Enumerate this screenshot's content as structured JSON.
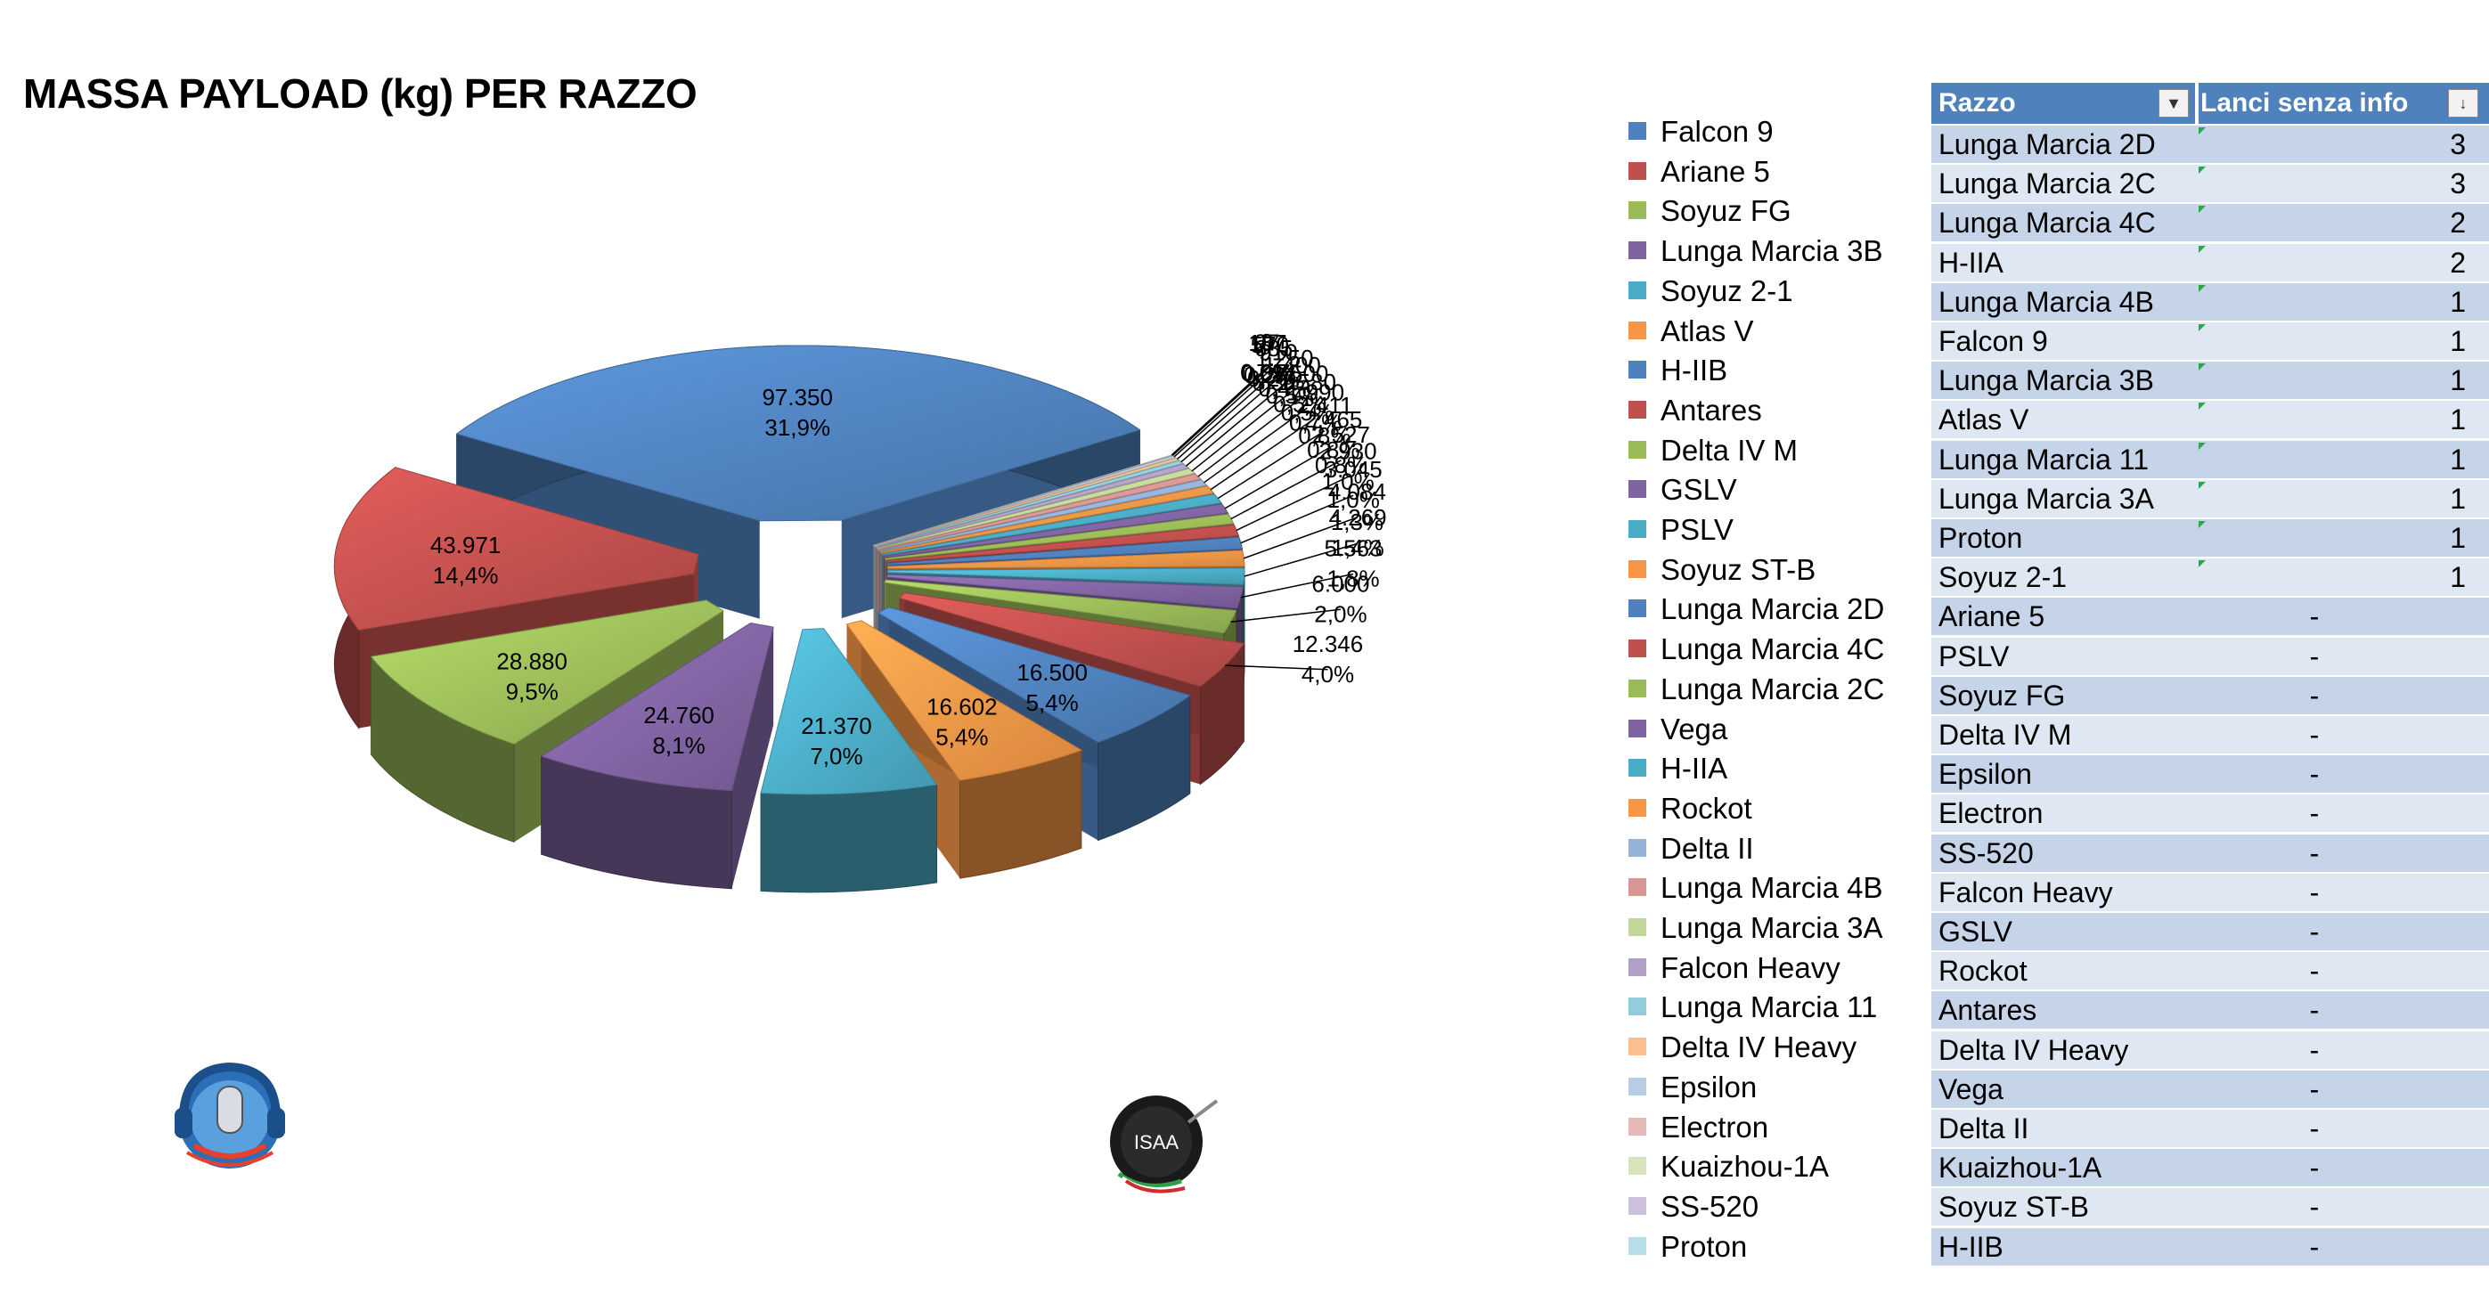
{
  "title": "MASSA PAYLOAD (kg) PER RAZZO",
  "chart_data": {
    "type": "pie",
    "title": "MASSA PAYLOAD (kg) PER RAZZO",
    "slices": [
      {
        "name": "Falcon 9",
        "value": 97350,
        "value_label": "97.350",
        "pct_label": "31,9%",
        "color": "#4f81bd"
      },
      {
        "name": "Ariane 5",
        "value": 43971,
        "value_label": "43.971",
        "pct_label": "14,4%",
        "color": "#c0504d"
      },
      {
        "name": "Soyuz FG",
        "value": 28880,
        "value_label": "28.880",
        "pct_label": "9,5%",
        "color": "#9bbb59"
      },
      {
        "name": "Lunga Marcia 3B",
        "value": 24760,
        "value_label": "24.760",
        "pct_label": "8,1%",
        "color": "#8064a2"
      },
      {
        "name": "Soyuz 2-1",
        "value": 21370,
        "value_label": "21.370",
        "pct_label": "7,0%",
        "color": "#4bacc6"
      },
      {
        "name": "Atlas V",
        "value": 16602,
        "value_label": "16.602",
        "pct_label": "5,4%",
        "color": "#f79646"
      },
      {
        "name": "H-IIB",
        "value": 16500,
        "value_label": "16.500",
        "pct_label": "5,4%",
        "color": "#4f81bd"
      },
      {
        "name": "Antares",
        "value": 12346,
        "value_label": "12.346",
        "pct_label": "4,0%",
        "color": "#c0504d"
      },
      {
        "name": "Delta IV M",
        "value": 6000,
        "value_label": "6.000",
        "pct_label": "2,0%",
        "color": "#9bbb59"
      },
      {
        "name": "GSLV",
        "value": 5563,
        "value_label": "5.563",
        "pct_label": "1,8%",
        "color": "#8064a2"
      },
      {
        "name": "PSLV",
        "value": 4269,
        "value_label": "4.269",
        "pct_label": "1,4%",
        "color": "#4bacc6"
      },
      {
        "name": "Soyuz ST-B",
        "value": 4084,
        "value_label": "4.084",
        "pct_label": "1,3%",
        "color": "#f79646"
      },
      {
        "name": "Lunga Marcia 2D",
        "value": 3045,
        "value_label": "3.045",
        "pct_label": "1,0%",
        "color": "#4f81bd"
      },
      {
        "name": "Lunga Marcia 4C",
        "value": 2930,
        "value_label": "2.930",
        "pct_label": "1,0%",
        "color": "#c0504d"
      },
      {
        "name": "Lunga Marcia 2C",
        "value": 2527,
        "value_label": "2.527",
        "pct_label": "0,8%",
        "color": "#9bbb59"
      },
      {
        "name": "Vega",
        "value": 2465,
        "value_label": "2.465",
        "pct_label": "0,8%",
        "color": "#8064a2"
      },
      {
        "name": "H-IIA",
        "value": 2411,
        "value_label": "2.411",
        "pct_label": "0,8%",
        "color": "#4bacc6"
      },
      {
        "name": "Rockot",
        "value": 1990,
        "value_label": "1.990",
        "pct_label": "0,7%",
        "color": "#f79646"
      },
      {
        "name": "Delta II",
        "value": 1580,
        "value_label": "1.580",
        "pct_label": "0,5%",
        "color": "#95b3d7"
      },
      {
        "name": "Lunga Marcia 4B",
        "value": 1500,
        "value_label": "1.500",
        "pct_label": "0,5%",
        "color": "#da9694"
      },
      {
        "name": "Lunga Marcia 3A",
        "value": 1400,
        "value_label": "1.400",
        "pct_label": "0,5%",
        "color": "#c4d79b"
      },
      {
        "name": "Falcon Heavy",
        "value": 1250,
        "value_label": "1.250",
        "pct_label": "0,4%",
        "color": "#b1a0c7"
      },
      {
        "name": "Lunga Marcia 11",
        "value": 910,
        "value_label": "910",
        "pct_label": "0,3%",
        "color": "#92cddc"
      },
      {
        "name": "Delta IV Heavy",
        "value": 685,
        "value_label": "685",
        "pct_label": "0,2%",
        "color": "#fabf8f"
      },
      {
        "name": "Epsilon",
        "value": 570,
        "value_label": "570",
        "pct_label": "0,2%",
        "color": "#b8cce4"
      },
      {
        "name": "Electron",
        "value": 107,
        "value_label": "107",
        "pct_label": "0,0%",
        "color": "#e6b8b7"
      },
      {
        "name": "Kuaizhou-1A",
        "value": 97,
        "value_label": "97",
        "pct_label": "0,0%",
        "color": "#d8e4bc"
      },
      {
        "name": "SS-520",
        "value": 3,
        "value_label": "3",
        "pct_label": "0,0%",
        "color": "#ccc0da"
      },
      {
        "name": "Proton",
        "value": 0,
        "value_label": "",
        "pct_label": "0,0%",
        "color": "#b7dee8"
      }
    ],
    "legend_placement": "right"
  },
  "legend": {
    "items": [
      {
        "label": "Falcon 9",
        "color": "#4f81bd"
      },
      {
        "label": "Ariane 5",
        "color": "#c0504d"
      },
      {
        "label": "Soyuz FG",
        "color": "#9bbb59"
      },
      {
        "label": "Lunga Marcia 3B",
        "color": "#8064a2"
      },
      {
        "label": "Soyuz 2-1",
        "color": "#4bacc6"
      },
      {
        "label": "Atlas V",
        "color": "#f79646"
      },
      {
        "label": "H-IIB",
        "color": "#4f81bd"
      },
      {
        "label": "Antares",
        "color": "#c0504d"
      },
      {
        "label": "Delta IV M",
        "color": "#9bbb59"
      },
      {
        "label": "GSLV",
        "color": "#8064a2"
      },
      {
        "label": "PSLV",
        "color": "#4bacc6"
      },
      {
        "label": "Soyuz ST-B",
        "color": "#f79646"
      },
      {
        "label": "Lunga Marcia 2D",
        "color": "#4f81bd"
      },
      {
        "label": "Lunga Marcia 4C",
        "color": "#c0504d"
      },
      {
        "label": "Lunga Marcia 2C",
        "color": "#9bbb59"
      },
      {
        "label": "Vega",
        "color": "#8064a2"
      },
      {
        "label": "H-IIA",
        "color": "#4bacc6"
      },
      {
        "label": "Rockot",
        "color": "#f79646"
      },
      {
        "label": "Delta II",
        "color": "#95b3d7"
      },
      {
        "label": "Lunga Marcia 4B",
        "color": "#da9694"
      },
      {
        "label": "Lunga Marcia 3A",
        "color": "#c4d79b"
      },
      {
        "label": "Falcon Heavy",
        "color": "#b1a0c7"
      },
      {
        "label": "Lunga Marcia 11",
        "color": "#92cddc"
      },
      {
        "label": "Delta IV Heavy",
        "color": "#fabf8f"
      },
      {
        "label": "Epsilon",
        "color": "#b8cce4"
      },
      {
        "label": "Electron",
        "color": "#e6b8b7"
      },
      {
        "label": "Kuaizhou-1A",
        "color": "#d8e4bc"
      },
      {
        "label": "SS-520",
        "color": "#ccc0da"
      },
      {
        "label": "Proton",
        "color": "#b7dee8"
      }
    ]
  },
  "table": {
    "header": {
      "col1": "Razzo",
      "col2": "Lanci senza info",
      "filter_icon1": "▼",
      "filter_icon2": "↓"
    },
    "header_color": "#4f81bd",
    "rows": [
      {
        "name": "Lunga Marcia 2D",
        "value": "3",
        "flag": true
      },
      {
        "name": "Lunga Marcia 2C",
        "value": "3",
        "flag": true
      },
      {
        "name": "Lunga Marcia 4C",
        "value": "2",
        "flag": true
      },
      {
        "name": "H-IIA",
        "value": "2",
        "flag": true
      },
      {
        "name": "Lunga Marcia 4B",
        "value": "1",
        "flag": true
      },
      {
        "name": "Falcon 9",
        "value": "1",
        "flag": true
      },
      {
        "name": "Lunga Marcia 3B",
        "value": "1",
        "flag": true
      },
      {
        "name": "Atlas V",
        "value": "1",
        "flag": true
      },
      {
        "name": "Lunga Marcia 11",
        "value": "1",
        "flag": true
      },
      {
        "name": "Lunga Marcia 3A",
        "value": "1",
        "flag": true
      },
      {
        "name": "Proton",
        "value": "1",
        "flag": true
      },
      {
        "name": "Soyuz 2-1",
        "value": "1",
        "flag": true
      },
      {
        "name": "Ariane 5",
        "value": "-",
        "flag": false
      },
      {
        "name": "PSLV",
        "value": "-",
        "flag": false
      },
      {
        "name": "Soyuz FG",
        "value": "-",
        "flag": false
      },
      {
        "name": "Delta IV M",
        "value": "-",
        "flag": false
      },
      {
        "name": "Epsilon",
        "value": "-",
        "flag": false
      },
      {
        "name": "Electron",
        "value": "-",
        "flag": false
      },
      {
        "name": "SS-520",
        "value": "-",
        "flag": false
      },
      {
        "name": "Falcon Heavy",
        "value": "-",
        "flag": false
      },
      {
        "name": "GSLV",
        "value": "-",
        "flag": false
      },
      {
        "name": "Rockot",
        "value": "-",
        "flag": false
      },
      {
        "name": "Antares",
        "value": "-",
        "flag": false
      },
      {
        "name": "Delta IV Heavy",
        "value": "-",
        "flag": false
      },
      {
        "name": "Vega",
        "value": "-",
        "flag": false
      },
      {
        "name": "Delta II",
        "value": "-",
        "flag": false
      },
      {
        "name": "Kuaizhou-1A",
        "value": "-",
        "flag": false
      },
      {
        "name": "Soyuz ST-B",
        "value": "-",
        "flag": false
      },
      {
        "name": "H-IIB",
        "value": "-",
        "flag": false
      }
    ]
  },
  "logos": {
    "left_icon": "microphone-headset-logo-icon",
    "right_text": "ISAA",
    "right_icon": "isaa-logo-icon"
  }
}
